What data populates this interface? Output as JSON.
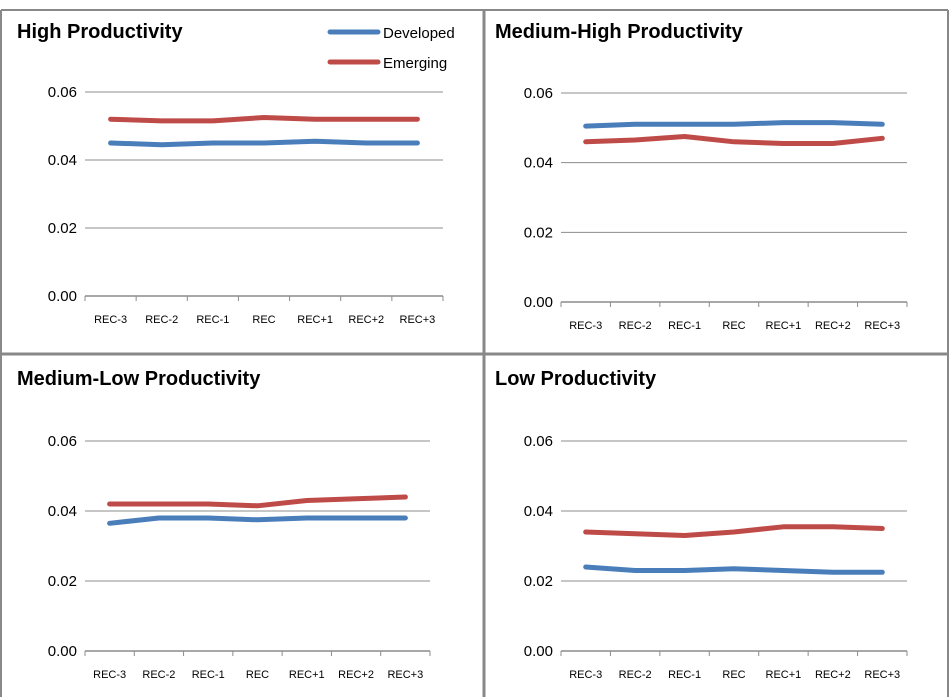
{
  "chart_data": [
    {
      "type": "line",
      "title": "High Productivity",
      "categories": [
        "REC-3",
        "REC-2",
        "REC-1",
        "REC",
        "REC+1",
        "REC+2",
        "REC+3"
      ],
      "series": [
        {
          "name": "Developed",
          "values": [
            0.045,
            0.0445,
            0.045,
            0.045,
            0.0455,
            0.045,
            0.045
          ]
        },
        {
          "name": "Emerging",
          "values": [
            0.052,
            0.0515,
            0.0515,
            0.0525,
            0.052,
            0.052,
            0.052
          ]
        }
      ],
      "yticks": [
        "0.00",
        "0.02",
        "0.04",
        "0.06"
      ],
      "ylim": [
        0,
        0.06
      ],
      "grid": true,
      "legend": "top-right"
    },
    {
      "type": "line",
      "title": "Medium-High Productivity",
      "categories": [
        "REC-3",
        "REC-2",
        "REC-1",
        "REC",
        "REC+1",
        "REC+2",
        "REC+3"
      ],
      "series": [
        {
          "name": "Developed",
          "values": [
            0.0505,
            0.051,
            0.051,
            0.051,
            0.0515,
            0.0515,
            0.051
          ]
        },
        {
          "name": "Emerging",
          "values": [
            0.046,
            0.0465,
            0.0475,
            0.046,
            0.0455,
            0.0455,
            0.047
          ]
        }
      ],
      "yticks": [
        "0.00",
        "0.02",
        "0.04",
        "0.06"
      ],
      "ylim": [
        0,
        0.06
      ],
      "grid": true
    },
    {
      "type": "line",
      "title": "Medium-Low Productivity",
      "categories": [
        "REC-3",
        "REC-2",
        "REC-1",
        "REC",
        "REC+1",
        "REC+2",
        "REC+3"
      ],
      "series": [
        {
          "name": "Developed",
          "values": [
            0.0365,
            0.038,
            0.038,
            0.0375,
            0.038,
            0.038,
            0.038
          ]
        },
        {
          "name": "Emerging",
          "values": [
            0.042,
            0.042,
            0.042,
            0.0415,
            0.043,
            0.0435,
            0.044
          ]
        }
      ],
      "yticks": [
        "0.00",
        "0.02",
        "0.04",
        "0.06"
      ],
      "ylim": [
        0,
        0.06
      ],
      "grid": true
    },
    {
      "type": "line",
      "title": "Low Productivity",
      "categories": [
        "REC-3",
        "REC-2",
        "REC-1",
        "REC",
        "REC+1",
        "REC+2",
        "REC+3"
      ],
      "series": [
        {
          "name": "Developed",
          "values": [
            0.024,
            0.023,
            0.023,
            0.0235,
            0.023,
            0.0225,
            0.0225
          ]
        },
        {
          "name": "Emerging",
          "values": [
            0.034,
            0.0335,
            0.033,
            0.034,
            0.0355,
            0.0355,
            0.035
          ]
        }
      ],
      "yticks": [
        "0.00",
        "0.02",
        "0.04",
        "0.06"
      ],
      "ylim": [
        0,
        0.06
      ],
      "grid": true
    }
  ],
  "legend": {
    "items": [
      {
        "label": "Developed",
        "color": "#4a7ebb"
      },
      {
        "label": "Emerging",
        "color": "#be4b48"
      }
    ]
  },
  "colors": {
    "developed": "#4a7ebb",
    "emerging": "#be4b48",
    "grid": "#8c8c8c",
    "border": "#888888"
  }
}
